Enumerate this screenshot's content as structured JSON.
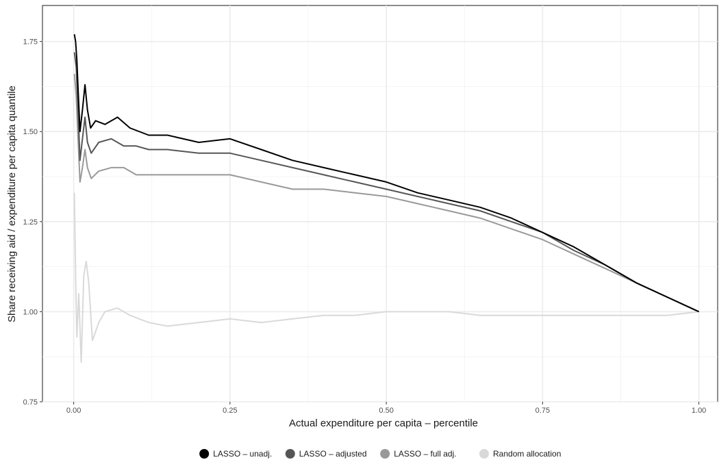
{
  "chart_data": {
    "type": "line",
    "title": "",
    "xlabel": "Actual expenditure per capita – percentile",
    "ylabel": "Share receiving aid / expenditure per capita quantile",
    "xlim": [
      -0.05,
      1.03
    ],
    "ylim": [
      0.75,
      1.85
    ],
    "x_ticks": [
      0.0,
      0.25,
      0.5,
      0.75,
      1.0
    ],
    "x_tick_labels": [
      "0.00",
      "0.25",
      "0.50",
      "0.75",
      "1.00"
    ],
    "y_ticks": [
      0.75,
      1.0,
      1.25,
      1.5,
      1.75
    ],
    "y_tick_labels": [
      "0.75",
      "1.00",
      "1.25",
      "1.50",
      "1.75"
    ],
    "grid": true,
    "legend_position": "bottom",
    "series": [
      {
        "name": "LASSO – unadj.",
        "color": "#000000",
        "points": [
          [
            0.001,
            1.77
          ],
          [
            0.003,
            1.75
          ],
          [
            0.005,
            1.7
          ],
          [
            0.007,
            1.62
          ],
          [
            0.01,
            1.5
          ],
          [
            0.014,
            1.56
          ],
          [
            0.018,
            1.63
          ],
          [
            0.022,
            1.56
          ],
          [
            0.027,
            1.51
          ],
          [
            0.035,
            1.53
          ],
          [
            0.05,
            1.52
          ],
          [
            0.07,
            1.54
          ],
          [
            0.09,
            1.51
          ],
          [
            0.12,
            1.49
          ],
          [
            0.15,
            1.49
          ],
          [
            0.2,
            1.47
          ],
          [
            0.25,
            1.48
          ],
          [
            0.3,
            1.45
          ],
          [
            0.35,
            1.42
          ],
          [
            0.4,
            1.4
          ],
          [
            0.45,
            1.38
          ],
          [
            0.5,
            1.36
          ],
          [
            0.55,
            1.33
          ],
          [
            0.6,
            1.31
          ],
          [
            0.65,
            1.29
          ],
          [
            0.7,
            1.26
          ],
          [
            0.75,
            1.22
          ],
          [
            0.8,
            1.18
          ],
          [
            0.85,
            1.13
          ],
          [
            0.9,
            1.08
          ],
          [
            0.95,
            1.04
          ],
          [
            1.0,
            1.0
          ]
        ]
      },
      {
        "name": "LASSO – adjusted",
        "color": "#555555",
        "points": [
          [
            0.001,
            1.72
          ],
          [
            0.004,
            1.68
          ],
          [
            0.007,
            1.56
          ],
          [
            0.01,
            1.42
          ],
          [
            0.014,
            1.48
          ],
          [
            0.018,
            1.54
          ],
          [
            0.022,
            1.47
          ],
          [
            0.028,
            1.44
          ],
          [
            0.04,
            1.47
          ],
          [
            0.06,
            1.48
          ],
          [
            0.08,
            1.46
          ],
          [
            0.1,
            1.46
          ],
          [
            0.12,
            1.45
          ],
          [
            0.15,
            1.45
          ],
          [
            0.2,
            1.44
          ],
          [
            0.25,
            1.44
          ],
          [
            0.3,
            1.42
          ],
          [
            0.35,
            1.4
          ],
          [
            0.4,
            1.38
          ],
          [
            0.45,
            1.36
          ],
          [
            0.5,
            1.34
          ],
          [
            0.55,
            1.32
          ],
          [
            0.6,
            1.3
          ],
          [
            0.65,
            1.28
          ],
          [
            0.7,
            1.25
          ],
          [
            0.75,
            1.22
          ],
          [
            0.8,
            1.17
          ],
          [
            0.85,
            1.13
          ],
          [
            0.9,
            1.08
          ],
          [
            0.95,
            1.04
          ],
          [
            1.0,
            1.0
          ]
        ]
      },
      {
        "name": "LASSO – full adj.",
        "color": "#999999",
        "points": [
          [
            0.001,
            1.66
          ],
          [
            0.004,
            1.6
          ],
          [
            0.007,
            1.48
          ],
          [
            0.01,
            1.36
          ],
          [
            0.014,
            1.4
          ],
          [
            0.018,
            1.45
          ],
          [
            0.022,
            1.4
          ],
          [
            0.028,
            1.37
          ],
          [
            0.04,
            1.39
          ],
          [
            0.06,
            1.4
          ],
          [
            0.08,
            1.4
          ],
          [
            0.1,
            1.38
          ],
          [
            0.12,
            1.38
          ],
          [
            0.15,
            1.38
          ],
          [
            0.2,
            1.38
          ],
          [
            0.25,
            1.38
          ],
          [
            0.3,
            1.36
          ],
          [
            0.35,
            1.34
          ],
          [
            0.4,
            1.34
          ],
          [
            0.45,
            1.33
          ],
          [
            0.5,
            1.32
          ],
          [
            0.55,
            1.3
          ],
          [
            0.6,
            1.28
          ],
          [
            0.65,
            1.26
          ],
          [
            0.7,
            1.23
          ],
          [
            0.75,
            1.2
          ],
          [
            0.8,
            1.16
          ],
          [
            0.85,
            1.12
          ],
          [
            0.9,
            1.08
          ],
          [
            0.95,
            1.04
          ],
          [
            1.0,
            1.0
          ]
        ]
      },
      {
        "name": "Random allocation",
        "color": "#d9d9d9",
        "points": [
          [
            0.001,
            1.33
          ],
          [
            0.003,
            1.1
          ],
          [
            0.005,
            0.93
          ],
          [
            0.008,
            1.05
          ],
          [
            0.012,
            0.86
          ],
          [
            0.016,
            1.1
          ],
          [
            0.02,
            1.14
          ],
          [
            0.024,
            1.08
          ],
          [
            0.03,
            0.92
          ],
          [
            0.04,
            0.97
          ],
          [
            0.05,
            1.0
          ],
          [
            0.07,
            1.01
          ],
          [
            0.09,
            0.99
          ],
          [
            0.12,
            0.97
          ],
          [
            0.15,
            0.96
          ],
          [
            0.2,
            0.97
          ],
          [
            0.25,
            0.98
          ],
          [
            0.3,
            0.97
          ],
          [
            0.35,
            0.98
          ],
          [
            0.4,
            0.99
          ],
          [
            0.45,
            0.99
          ],
          [
            0.5,
            1.0
          ],
          [
            0.55,
            1.0
          ],
          [
            0.6,
            1.0
          ],
          [
            0.65,
            0.99
          ],
          [
            0.7,
            0.99
          ],
          [
            0.75,
            0.99
          ],
          [
            0.8,
            0.99
          ],
          [
            0.85,
            0.99
          ],
          [
            0.9,
            0.99
          ],
          [
            0.95,
            0.99
          ],
          [
            1.0,
            1.0
          ]
        ]
      }
    ]
  }
}
